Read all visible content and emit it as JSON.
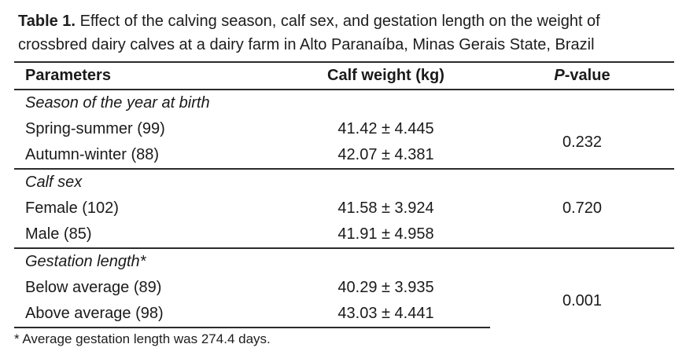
{
  "title": {
    "label": "Table 1.",
    "line1": "Effect of the calving season, calf sex, and gestation length on the weight of",
    "line2": "crossbred dairy calves at a dairy farm in Alto Paranaíba, Minas Gerais State, Brazil"
  },
  "table": {
    "columns": {
      "parameters": "Parameters",
      "calf_weight": "Calf weight (kg)",
      "p_value": {
        "italic": "P",
        "rest": "-value"
      }
    },
    "sections": [
      {
        "header": "Season of the year at birth",
        "rows": [
          {
            "parameter": "Spring-summer (99)",
            "calf_weight": "41.42 ± 4.445"
          },
          {
            "parameter": "Autumn-winter (88)",
            "calf_weight": "42.07 ± 4.381"
          }
        ],
        "p_value": "0.232"
      },
      {
        "header": "Calf sex",
        "rows": [
          {
            "parameter": "Female (102)",
            "calf_weight": "41.58 ± 3.924"
          },
          {
            "parameter": "Male (85)",
            "calf_weight": "41.91 ± 4.958"
          }
        ],
        "p_value": "0.720"
      },
      {
        "header": "Gestation length*",
        "rows": [
          {
            "parameter": "Below average (89)",
            "calf_weight": "40.29 ± 3.935"
          },
          {
            "parameter": "Above average (98)",
            "calf_weight": "43.03 ± 4.441"
          }
        ],
        "p_value": "0.001"
      }
    ],
    "footnote": "* Average gestation length was 274.4 days.",
    "colors": {
      "text": "#1a1a1a",
      "rule": "#2b2b2b",
      "background": "#ffffff"
    }
  }
}
